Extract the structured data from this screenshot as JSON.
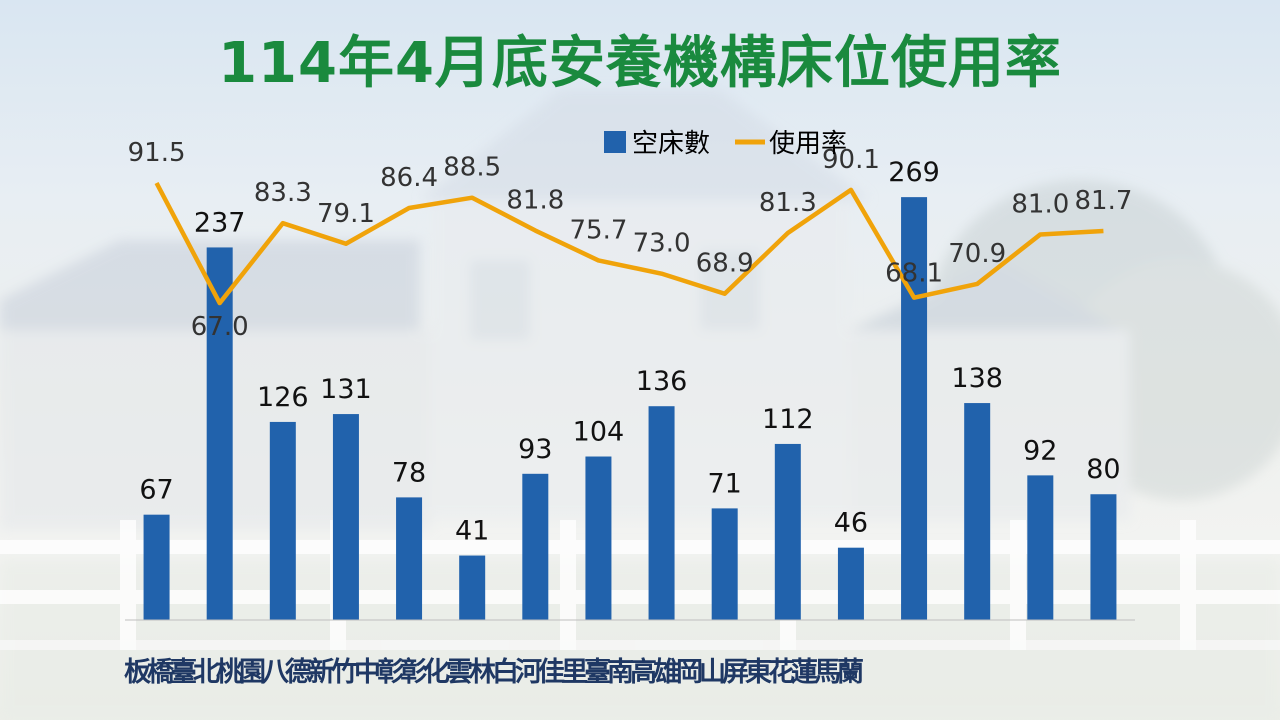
{
  "title": "114年4月底安養機構床位使用率",
  "chart_data": {
    "type": "bar+line",
    "categories": [
      "板橋",
      "臺北",
      "桃園",
      "八德",
      "新竹",
      "中彰",
      "彰化",
      "雲林",
      "白河",
      "佳里",
      "臺南",
      "高雄",
      "岡山",
      "屏東",
      "花蓮",
      "馬蘭"
    ],
    "series": [
      {
        "name": "空床數",
        "type": "bar",
        "color": "#2162ac",
        "values": [
          67,
          237,
          126,
          131,
          78,
          41,
          93,
          104,
          136,
          71,
          112,
          46,
          269,
          138,
          92,
          80
        ]
      },
      {
        "name": "使用率",
        "type": "line",
        "color": "#f0a30a",
        "values": [
          91.5,
          67.0,
          83.3,
          79.1,
          86.4,
          88.5,
          81.8,
          75.7,
          73.0,
          68.9,
          81.3,
          90.1,
          68.1,
          70.9,
          81.0,
          81.7
        ]
      }
    ],
    "value_labels_bar": [
      "67",
      "237",
      "126",
      "131",
      "78",
      "41",
      "93",
      "104",
      "136",
      "71",
      "112",
      "46",
      "269",
      "138",
      "92",
      "80"
    ],
    "value_labels_line": [
      "91.5",
      "67.0",
      "83.3",
      "79.1",
      "86.4",
      "88.5",
      "81.8",
      "75.7",
      "73.0",
      "68.9",
      "81.3",
      "90.1",
      "68.1",
      "70.9",
      "81.0",
      "81.7"
    ],
    "legend_position": "top-center",
    "grid": false,
    "bar_ylim": [
      0,
      290
    ],
    "line_ylim": [
      50,
      100
    ]
  }
}
